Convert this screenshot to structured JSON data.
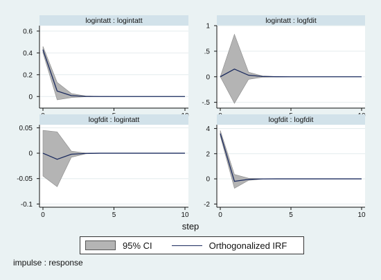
{
  "legend": {
    "ci_label": "95% CI",
    "irf_label": "Orthogonalized IRF"
  },
  "footnote": "impulse : response",
  "xlabel": "step",
  "colors": {
    "background": "#eaf2f3",
    "panel_title_bg": "#d2e2ea",
    "ci_fill": "#b4b4b4",
    "irf_line": "#1a2a5e"
  },
  "chart_data": [
    {
      "type": "area",
      "title": "logintatt : logintatt",
      "xlim": [
        0,
        10
      ],
      "ylim": [
        -0.1,
        0.65
      ],
      "xticks": [
        0,
        5,
        10
      ],
      "yticks": [
        0,
        0.2,
        0.4,
        0.6
      ],
      "ytick_labels": [
        "0",
        "0.2",
        "0.4",
        "0.6"
      ],
      "x": [
        0,
        1,
        2,
        3,
        4,
        5,
        6,
        7,
        8,
        9,
        10
      ],
      "series": [
        {
          "values": [
            0.43,
            0.05,
            0.008,
            0.001,
            0,
            0,
            0,
            0,
            0,
            0,
            0
          ]
        },
        {
          "values": [
            0.4,
            -0.03,
            -0.01,
            -0.002,
            0,
            0,
            0,
            0,
            0,
            0,
            0
          ]
        },
        {
          "values": [
            0.46,
            0.13,
            0.028,
            0.005,
            0.001,
            0,
            0,
            0,
            0,
            0,
            0
          ]
        }
      ]
    },
    {
      "type": "area",
      "title": "logintatt : logfdit",
      "xlim": [
        0,
        10
      ],
      "ylim": [
        -0.6,
        1.0
      ],
      "xticks": [
        0,
        5,
        10
      ],
      "yticks": [
        -0.5,
        0,
        0.5,
        1
      ],
      "ytick_labels": [
        "-.5",
        "0",
        ".5",
        "1"
      ],
      "x": [
        0,
        1,
        2,
        3,
        4,
        5,
        6,
        7,
        8,
        9,
        10
      ],
      "series": [
        {
          "values": [
            0,
            0.15,
            0.03,
            0.005,
            0.001,
            0,
            0,
            0,
            0,
            0,
            0
          ]
        },
        {
          "values": [
            0,
            -0.52,
            -0.05,
            -0.01,
            -0.002,
            0,
            0,
            0,
            0,
            0,
            0
          ]
        },
        {
          "values": [
            0,
            0.83,
            0.09,
            0.015,
            0.003,
            0,
            0,
            0,
            0,
            0,
            0
          ]
        }
      ]
    },
    {
      "type": "area",
      "title": "logfdit : logintatt",
      "xlim": [
        0,
        10
      ],
      "ylim": [
        -0.105,
        0.056
      ],
      "xticks": [
        0,
        5,
        10
      ],
      "yticks": [
        -0.1,
        -0.05,
        0,
        0.05
      ],
      "ytick_labels": [
        "-0.1",
        "-0.05",
        "0",
        "0.05"
      ],
      "x": [
        0,
        1,
        2,
        3,
        4,
        5,
        6,
        7,
        8,
        9,
        10
      ],
      "series": [
        {
          "values": [
            0,
            -0.012,
            -0.002,
            -0.0004,
            0,
            0,
            0,
            0,
            0,
            0,
            0
          ]
        },
        {
          "values": [
            -0.045,
            -0.066,
            -0.008,
            -0.0012,
            -0.0002,
            0,
            0,
            0,
            0,
            0,
            0
          ]
        },
        {
          "values": [
            0.045,
            0.042,
            0.004,
            0.0004,
            0,
            0,
            0,
            0,
            0,
            0,
            0
          ]
        }
      ]
    },
    {
      "type": "area",
      "title": "logfdit : logfdit",
      "xlim": [
        0,
        10
      ],
      "ylim": [
        -2.2,
        4.3
      ],
      "xticks": [
        0,
        5,
        10
      ],
      "yticks": [
        -2,
        0,
        2,
        4
      ],
      "ytick_labels": [
        "-2",
        "0",
        "2",
        "4"
      ],
      "x": [
        0,
        1,
        2,
        3,
        4,
        5,
        6,
        7,
        8,
        9,
        10
      ],
      "series": [
        {
          "values": [
            3.6,
            -0.2,
            -0.04,
            -0.005,
            0,
            0,
            0,
            0,
            0,
            0,
            0
          ]
        },
        {
          "values": [
            3.4,
            -0.75,
            -0.12,
            -0.02,
            0,
            0,
            0,
            0,
            0,
            0,
            0
          ]
        },
        {
          "values": [
            3.85,
            0.35,
            0.05,
            0.01,
            0,
            0,
            0,
            0,
            0,
            0,
            0
          ]
        }
      ]
    }
  ]
}
